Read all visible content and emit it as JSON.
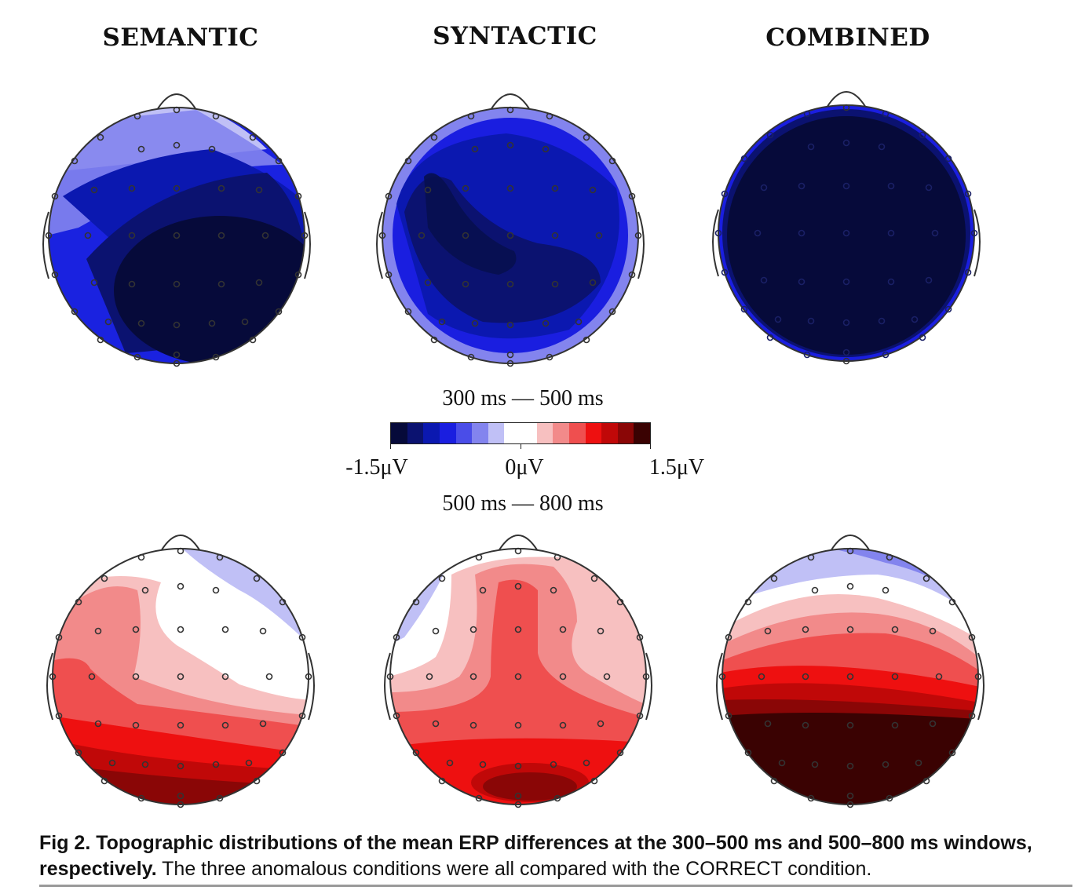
{
  "titles": [
    "SEMANTIC",
    "SYNTACTIC",
    "COMBINED"
  ],
  "windows": {
    "early": "300 ms — 500 ms",
    "late": "500 ms — 800 ms"
  },
  "colorbar": {
    "min_label": "-1.5μV",
    "mid_label": "0μV",
    "max_label": "1.5μV",
    "colors": [
      "#060a3a",
      "#0b1270",
      "#0b18b0",
      "#1a1ee0",
      "#4a4de8",
      "#8384ee",
      "#c0c0f6",
      "#ffffff",
      "#ffffff",
      "#f7c0c0",
      "#f28a8a",
      "#ef4f4f",
      "#ee1010",
      "#c00808",
      "#8a0606",
      "#3a0202"
    ]
  },
  "caption": {
    "fig_label": "Fig 2.",
    "bold_text": "Topographic distributions of the mean ERP differences at the 300–500 ms and 500–800 ms windows, respectively.",
    "rest": "The three anomalous conditions were all compared with the CORRECT condition."
  }
}
